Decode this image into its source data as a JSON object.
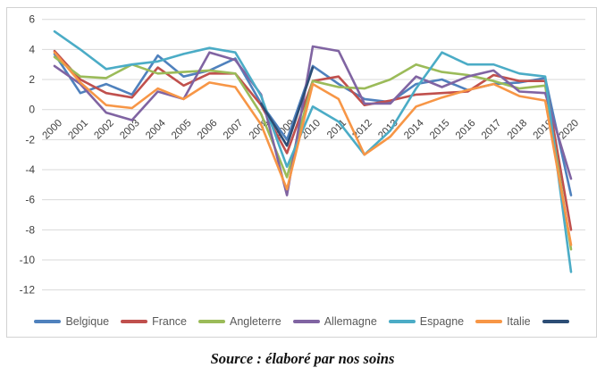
{
  "source_note": "Source : élaboré par nos soins",
  "colors": {
    "grid": "#d9d9d9",
    "frame_border": "#d2d2d2",
    "tick_label": "#404040",
    "legend_label": "#595959"
  },
  "chart_data": {
    "type": "line",
    "categories": [
      "2000",
      "2001",
      "2002",
      "2003",
      "2004",
      "2005",
      "2006",
      "2007",
      "2008",
      "2009",
      "2010",
      "2011",
      "2012",
      "2013",
      "2014",
      "2015",
      "2016",
      "2017",
      "2018",
      "2019",
      "2020"
    ],
    "ylim": [
      -12,
      6
    ],
    "ytick_step": 2,
    "grid": true,
    "legend_position": "bottom",
    "title": "",
    "xlabel": "",
    "ylabel": "",
    "series": [
      {
        "name": "Belgique",
        "color": "#4F81BD",
        "values": [
          3.7,
          1.1,
          1.7,
          1.0,
          3.6,
          2.2,
          2.6,
          3.4,
          0.4,
          -2.0,
          2.9,
          1.7,
          0.7,
          0.5,
          1.7,
          2.0,
          1.3,
          1.7,
          1.8,
          2.1,
          -5.7
        ]
      },
      {
        "name": "France",
        "color": "#C0504D",
        "values": [
          3.9,
          2.0,
          1.1,
          0.8,
          2.8,
          1.6,
          2.4,
          2.4,
          0.3,
          -2.9,
          1.9,
          2.2,
          0.3,
          0.6,
          1.0,
          1.1,
          1.2,
          2.3,
          1.9,
          1.9,
          -8.0
        ]
      },
      {
        "name": "Angleterre",
        "color": "#9BBB59",
        "values": [
          3.5,
          2.2,
          2.1,
          3.0,
          2.4,
          2.5,
          2.6,
          2.4,
          -0.3,
          -4.5,
          1.9,
          1.5,
          1.4,
          2.0,
          3.0,
          2.5,
          2.3,
          1.9,
          1.4,
          1.6,
          -9.3
        ]
      },
      {
        "name": "Allemagne",
        "color": "#8064A2",
        "values": [
          2.9,
          1.7,
          -0.2,
          -0.7,
          1.2,
          0.7,
          3.8,
          3.3,
          1.0,
          -5.7,
          4.2,
          3.9,
          0.4,
          0.4,
          2.2,
          1.5,
          2.2,
          2.6,
          1.2,
          1.1,
          -4.6
        ]
      },
      {
        "name": "Espagne",
        "color": "#4BACC6",
        "values": [
          5.2,
          4.0,
          2.7,
          3.0,
          3.2,
          3.7,
          4.1,
          3.8,
          0.9,
          -3.8,
          0.2,
          -0.8,
          -3.0,
          -1.4,
          1.4,
          3.8,
          3.0,
          3.0,
          2.4,
          2.2,
          -10.8
        ]
      },
      {
        "name": "Italie",
        "color": "#F79646",
        "values": [
          3.8,
          1.8,
          0.3,
          0.1,
          1.4,
          0.7,
          1.8,
          1.5,
          -1.0,
          -5.3,
          1.7,
          0.7,
          -3.0,
          -1.8,
          0.2,
          0.8,
          1.3,
          1.7,
          0.9,
          0.6,
          -9.0
        ]
      },
      {
        "name": "",
        "color": "#2C4D75",
        "values": [
          null,
          null,
          null,
          null,
          null,
          null,
          null,
          null,
          0.4,
          -2.4,
          2.8,
          null,
          null,
          null,
          null,
          null,
          null,
          null,
          null,
          null,
          null
        ]
      }
    ]
  }
}
